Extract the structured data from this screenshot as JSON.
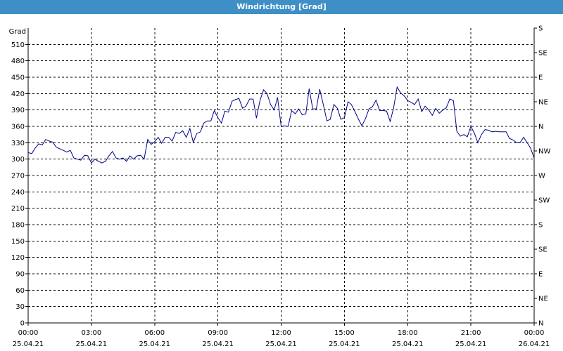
{
  "title": "Windrichtung [Grad]",
  "chart_data": {
    "type": "line",
    "ylabel": "Grad",
    "ylim": [
      0,
      540
    ],
    "yticks": [
      0,
      30,
      60,
      90,
      120,
      150,
      180,
      210,
      240,
      270,
      300,
      330,
      360,
      390,
      420,
      450,
      480,
      510
    ],
    "right_ticks": [
      {
        "value": 0,
        "label": "N"
      },
      {
        "value": 45,
        "label": "NE"
      },
      {
        "value": 90,
        "label": "E"
      },
      {
        "value": 135,
        "label": "SE"
      },
      {
        "value": 180,
        "label": "S"
      },
      {
        "value": 225,
        "label": "SW"
      },
      {
        "value": 270,
        "label": "W"
      },
      {
        "value": 315,
        "label": "NW"
      },
      {
        "value": 360,
        "label": "N"
      },
      {
        "value": 405,
        "label": "NE"
      },
      {
        "value": 450,
        "label": "E"
      },
      {
        "value": 495,
        "label": "SE"
      },
      {
        "value": 540,
        "label": "S"
      }
    ],
    "xlim": [
      0,
      24
    ],
    "xticks": [
      {
        "h": 0,
        "time": "00:00",
        "date": "25.04.21"
      },
      {
        "h": 3,
        "time": "03:00",
        "date": "25.04.21"
      },
      {
        "h": 6,
        "time": "06:00",
        "date": "25.04.21"
      },
      {
        "h": 9,
        "time": "09:00",
        "date": "25.04.21"
      },
      {
        "h": 12,
        "time": "12:00",
        "date": "25.04.21"
      },
      {
        "h": 15,
        "time": "15:00",
        "date": "25.04.21"
      },
      {
        "h": 18,
        "time": "18:00",
        "date": "25.04.21"
      },
      {
        "h": 21,
        "time": "21:00",
        "date": "25.04.21"
      },
      {
        "h": 24,
        "time": "00:00",
        "date": "26.04.21"
      }
    ],
    "grid": true,
    "series": [
      {
        "color": "#00008b",
        "x": [
          0.0,
          0.17,
          0.33,
          0.5,
          0.67,
          0.83,
          1.0,
          1.17,
          1.33,
          1.5,
          1.67,
          1.83,
          2.0,
          2.17,
          2.33,
          2.5,
          2.67,
          2.83,
          3.0,
          3.17,
          3.33,
          3.5,
          3.67,
          3.83,
          4.0,
          4.17,
          4.33,
          4.5,
          4.67,
          4.83,
          5.0,
          5.17,
          5.33,
          5.5,
          5.67,
          5.83,
          6.0,
          6.17,
          6.33,
          6.5,
          6.67,
          6.83,
          7.0,
          7.17,
          7.33,
          7.5,
          7.67,
          7.83,
          8.0,
          8.17,
          8.33,
          8.5,
          8.67,
          8.83,
          9.0,
          9.17,
          9.33,
          9.5,
          9.67,
          9.83,
          10.0,
          10.17,
          10.33,
          10.5,
          10.67,
          10.83,
          11.0,
          11.17,
          11.33,
          11.5,
          11.67,
          11.83,
          12.0,
          12.17,
          12.33,
          12.5,
          12.67,
          12.83,
          13.0,
          13.17,
          13.33,
          13.5,
          13.67,
          13.83,
          14.0,
          14.17,
          14.33,
          14.5,
          14.67,
          14.83,
          15.0,
          15.17,
          15.33,
          15.5,
          15.67,
          15.83,
          16.0,
          16.17,
          16.33,
          16.5,
          16.67,
          16.83,
          17.0,
          17.17,
          17.33,
          17.5,
          17.67,
          17.83,
          18.0,
          18.17,
          18.33,
          18.5,
          18.67,
          18.83,
          19.0,
          19.17,
          19.33,
          19.5,
          19.67,
          19.83,
          20.0,
          20.17,
          20.33,
          20.5,
          20.67,
          20.83,
          21.0,
          21.17,
          21.33,
          21.5,
          21.67,
          21.83,
          22.0,
          22.17,
          22.33,
          22.5,
          22.67,
          22.83,
          23.0,
          23.17,
          23.33,
          23.5,
          23.67,
          23.83,
          24.0
        ],
        "y": [
          312,
          310,
          320,
          328,
          326,
          336,
          333,
          331,
          322,
          319,
          316,
          313,
          316,
          302,
          300,
          298,
          307,
          306,
          293,
          300,
          296,
          293,
          296,
          306,
          314,
          302,
          300,
          302,
          296,
          306,
          300,
          306,
          307,
          300,
          336,
          327,
          332,
          340,
          329,
          340,
          340,
          333,
          349,
          347,
          352,
          340,
          356,
          331,
          347,
          350,
          366,
          370,
          370,
          389,
          376,
          366,
          388,
          386,
          406,
          409,
          411,
          393,
          397,
          410,
          410,
          375,
          408,
          427,
          420,
          400,
          390,
          413,
          360,
          361,
          360,
          389,
          383,
          392,
          381,
          383,
          429,
          392,
          392,
          428,
          400,
          370,
          373,
          400,
          393,
          373,
          376,
          405,
          400,
          387,
          373,
          361,
          374,
          392,
          396,
          408,
          389,
          389,
          388,
          369,
          393,
          432,
          421,
          416,
          407,
          404,
          400,
          410,
          387,
          397,
          390,
          380,
          393,
          384,
          390,
          394,
          410,
          407,
          351,
          342,
          345,
          341,
          360,
          347,
          330,
          345,
          354,
          353,
          350,
          351,
          350,
          350,
          350,
          338,
          335,
          330,
          330,
          340,
          330,
          320,
          302
        ]
      }
    ]
  }
}
